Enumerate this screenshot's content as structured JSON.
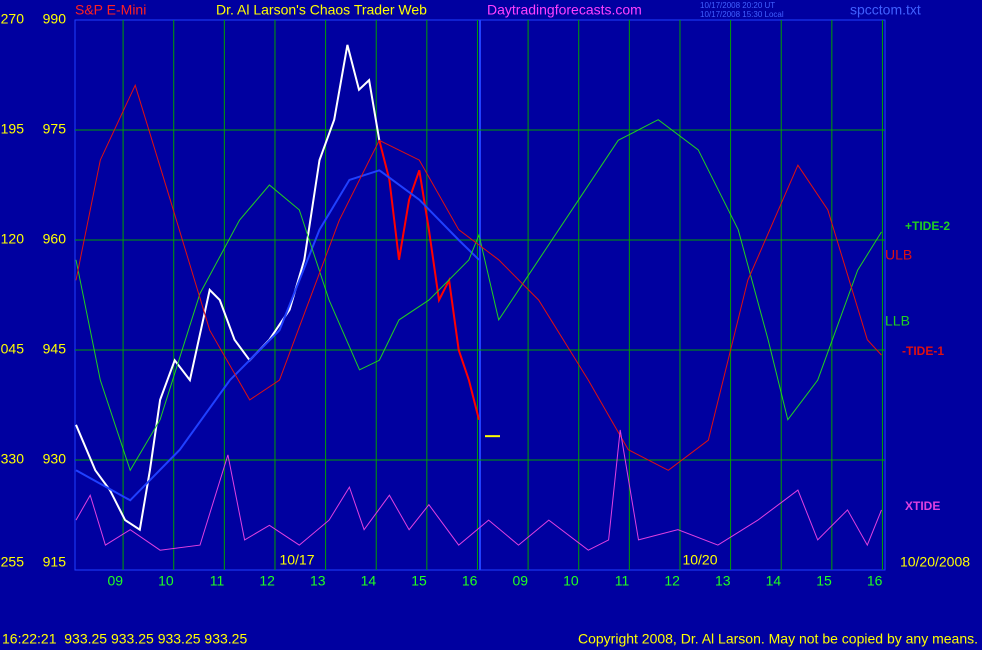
{
  "chart_data": {
    "type": "line",
    "title": "Dr. Al Larson's Chaos Trader Web",
    "instrument": "S&P E-Mini",
    "site": "Daytradingforecasts.com",
    "timestamp_lines": [
      "10/17/2008 20:20 UT",
      "10/17/2008 15:30 Local"
    ],
    "file_name": "spcctom.txt",
    "ylim": [
      915,
      990
    ],
    "yticks": [
      990,
      975,
      960,
      945,
      930,
      915
    ],
    "tide_scale_labels": [
      "270",
      "195",
      "120",
      "045",
      "330",
      "255"
    ],
    "xlim": [
      -0.95,
      15.05
    ],
    "xticks": [
      {
        "value": 0,
        "label": "09"
      },
      {
        "value": 1,
        "label": "10"
      },
      {
        "value": 2,
        "label": "11"
      },
      {
        "value": 3,
        "label": "12"
      },
      {
        "value": 4,
        "label": "13"
      },
      {
        "value": 5,
        "label": "14"
      },
      {
        "value": 6,
        "label": "15"
      },
      {
        "value": 7,
        "label": "16"
      },
      {
        "value": 8,
        "label": "09"
      },
      {
        "value": 9,
        "label": "10"
      },
      {
        "value": 10,
        "label": "11"
      },
      {
        "value": 11,
        "label": "12"
      },
      {
        "value": 12,
        "label": "13"
      },
      {
        "value": 13,
        "label": "14"
      },
      {
        "value": 14,
        "label": "15"
      },
      {
        "value": 15,
        "label": "16"
      }
    ],
    "grid": true,
    "date_labels": [
      "10/17",
      "10/20",
      "10/20/2008"
    ],
    "series": [
      {
        "color": "#ffffff",
        "x": [
          -0.93,
          -0.55,
          -0.26,
          0.04,
          0.33,
          0.53,
          0.73,
          1.02,
          1.32,
          1.71,
          1.91,
          2.2,
          2.5,
          2.89,
          3.29,
          3.58,
          3.88,
          4.17,
          4.43,
          4.66,
          4.86,
          5.06
        ],
        "values": [
          934.8,
          928.6,
          925.9,
          921.8,
          920.5,
          928.6,
          938.2,
          943.6,
          940.9,
          953.2,
          951.8,
          946.4,
          943.6,
          946.4,
          950.5,
          957.3,
          970.9,
          976.4,
          986.6,
          980.5,
          981.8,
          973.6
        ]
      },
      {
        "color": "#ff0000",
        "x": [
          5.06,
          5.26,
          5.45,
          5.65,
          5.85,
          6.04,
          6.24,
          6.44,
          6.63,
          6.83,
          7.03
        ],
        "values": [
          973.6,
          968.2,
          957.3,
          965.5,
          969.5,
          961.4,
          951.8,
          954.5,
          945.0,
          940.9,
          935.5
        ]
      },
      {
        "color": "#2040ff",
        "x": [
          -0.93,
          0.14,
          1.12,
          2.11,
          3.09,
          3.88,
          4.47,
          5.06,
          5.85,
          6.63,
          7.03
        ],
        "values": [
          928.6,
          924.5,
          931.4,
          940.9,
          947.7,
          961.4,
          968.2,
          969.5,
          965.5,
          960.0,
          957.3
        ]
      },
      {
        "name": "+TIDE-2",
        "color": "#20d020",
        "x": [
          -0.93,
          -0.45,
          0.14,
          0.73,
          1.52,
          2.3,
          2.89,
          3.48,
          4.07,
          4.67,
          5.06,
          5.45,
          6.04,
          6.83,
          7.03,
          7.42,
          8.21,
          9.0,
          9.78,
          10.57,
          11.36,
          12.15,
          12.74,
          13.13,
          13.72,
          14.51,
          14.98
        ],
        "values": [
          957.3,
          940.9,
          928.6,
          935.5,
          952.7,
          962.7,
          967.5,
          964.1,
          951.8,
          942.3,
          943.6,
          949.1,
          951.8,
          957.3,
          960.7,
          949.1,
          957.3,
          965.5,
          973.6,
          976.4,
          972.3,
          961.4,
          946.4,
          935.5,
          940.9,
          955.9,
          961.1
        ]
      },
      {
        "name": "-TIDE-1",
        "color": "#e01010",
        "x": [
          -0.93,
          -0.45,
          0.24,
          0.93,
          1.71,
          2.5,
          3.09,
          3.68,
          4.27,
          5.06,
          5.85,
          6.63,
          7.42,
          8.21,
          9.19,
          9.98,
          10.77,
          11.56,
          12.34,
          13.33,
          13.92,
          14.7,
          14.98
        ],
        "values": [
          954.5,
          970.9,
          981.1,
          965.5,
          947.7,
          938.2,
          940.9,
          951.8,
          962.7,
          973.6,
          970.9,
          961.4,
          957.3,
          951.8,
          940.9,
          931.4,
          928.6,
          932.7,
          954.5,
          970.2,
          964.1,
          946.4,
          944.3
        ]
      },
      {
        "name": "XTIDE",
        "color": "#e040e0",
        "x": [
          -0.93,
          -0.65,
          -0.35,
          0.14,
          0.73,
          1.52,
          2.07,
          2.4,
          2.89,
          3.48,
          4.07,
          4.47,
          4.76,
          5.26,
          5.65,
          6.04,
          6.63,
          7.22,
          7.81,
          8.41,
          9.19,
          9.59,
          9.82,
          10.18,
          10.96,
          11.75,
          12.54,
          13.33,
          13.72,
          14.31,
          14.7,
          14.98
        ],
        "values": [
          921.8,
          925.2,
          918.4,
          920.5,
          917.7,
          918.4,
          930.7,
          919.1,
          921.1,
          918.4,
          921.8,
          926.3,
          920.5,
          925.2,
          920.5,
          923.9,
          918.4,
          921.8,
          918.4,
          921.8,
          917.7,
          919.1,
          934.1,
          919.1,
          920.5,
          918.4,
          921.8,
          925.9,
          919.1,
          923.2,
          918.4,
          923.2
        ]
      }
    ],
    "band_labels": [
      {
        "text": "ULB",
        "color": "#e01010"
      },
      {
        "text": "LLB",
        "color": "#20d020"
      }
    ],
    "last_price": 933.25,
    "status_line": "16:22:21  933.25 933.25 933.25 933.25",
    "copyright": "Copyright 2008, Dr. Al Larson. May not be copied by any means."
  }
}
